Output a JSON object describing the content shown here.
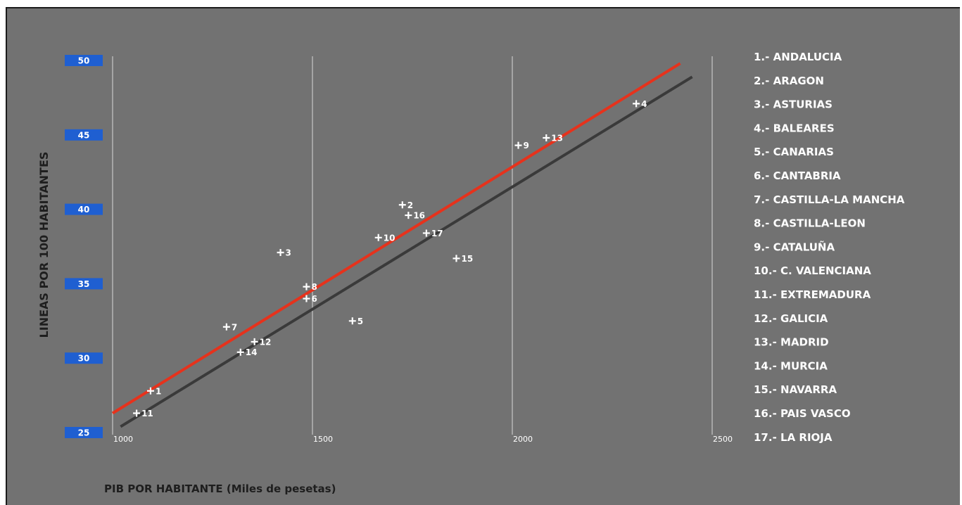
{
  "chart_data": {
    "type": "scatter",
    "title": "",
    "xlabel": "PIB POR HABITANTE (Miles de pesetas)",
    "ylabel": "LINEAS POR 100 HABITANTES",
    "xlim": [
      1000,
      2500
    ],
    "ylim": [
      25,
      50
    ],
    "x_ticks": [
      1000,
      1500,
      2000,
      2500
    ],
    "y_ticks": [
      25,
      30,
      35,
      40,
      45,
      50
    ],
    "grid": "vertical",
    "points": [
      {
        "label": "1",
        "x": 1095,
        "y": 27.8
      },
      {
        "label": "2",
        "x": 1725,
        "y": 40.3
      },
      {
        "label": "3",
        "x": 1420,
        "y": 37.1
      },
      {
        "label": "4",
        "x": 2310,
        "y": 47.1
      },
      {
        "label": "5",
        "x": 1600,
        "y": 32.5
      },
      {
        "label": "6",
        "x": 1485,
        "y": 34.0
      },
      {
        "label": "7",
        "x": 1285,
        "y": 32.1
      },
      {
        "label": "8",
        "x": 1485,
        "y": 34.8
      },
      {
        "label": "9",
        "x": 2015,
        "y": 44.3
      },
      {
        "label": "10",
        "x": 1665,
        "y": 38.1
      },
      {
        "label": "11",
        "x": 1060,
        "y": 26.3
      },
      {
        "label": "12",
        "x": 1355,
        "y": 31.1
      },
      {
        "label": "13",
        "x": 2085,
        "y": 44.8
      },
      {
        "label": "14",
        "x": 1320,
        "y": 30.4
      },
      {
        "label": "15",
        "x": 1860,
        "y": 36.7
      },
      {
        "label": "16",
        "x": 1740,
        "y": 39.6
      },
      {
        "label": "17",
        "x": 1785,
        "y": 38.4
      }
    ],
    "trend_lines": [
      {
        "color": "#e6321c",
        "x": [
          1000,
          2420
        ],
        "y": [
          26.3,
          49.8
        ]
      },
      {
        "color": "#3a3a3a",
        "x": [
          1020,
          2450
        ],
        "y": [
          25.4,
          48.9
        ]
      }
    ],
    "legend_position": "right",
    "legend": [
      "1.- ANDALUCIA",
      "2.- ARAGON",
      "3.- ASTURIAS",
      "4.- BALEARES",
      "5.- CANARIAS",
      "6.- CANTABRIA",
      "7.- CASTILLA-LA MANCHA",
      "8.- CASTILLA-LEON",
      "9.- CATALUÑA",
      "10.- C. VALENCIANA",
      "11.- EXTREMADURA",
      "12.- GALICIA",
      "13.- MADRID",
      "14.- MURCIA",
      "15.- NAVARRA",
      "16.- PAIS VASCO",
      "17.- LA RIOJA"
    ],
    "colors": {
      "background": "#727272",
      "tick_box": "#1f5fd1",
      "text": "#ffffff",
      "axis_title": "#1e1e1e"
    }
  }
}
